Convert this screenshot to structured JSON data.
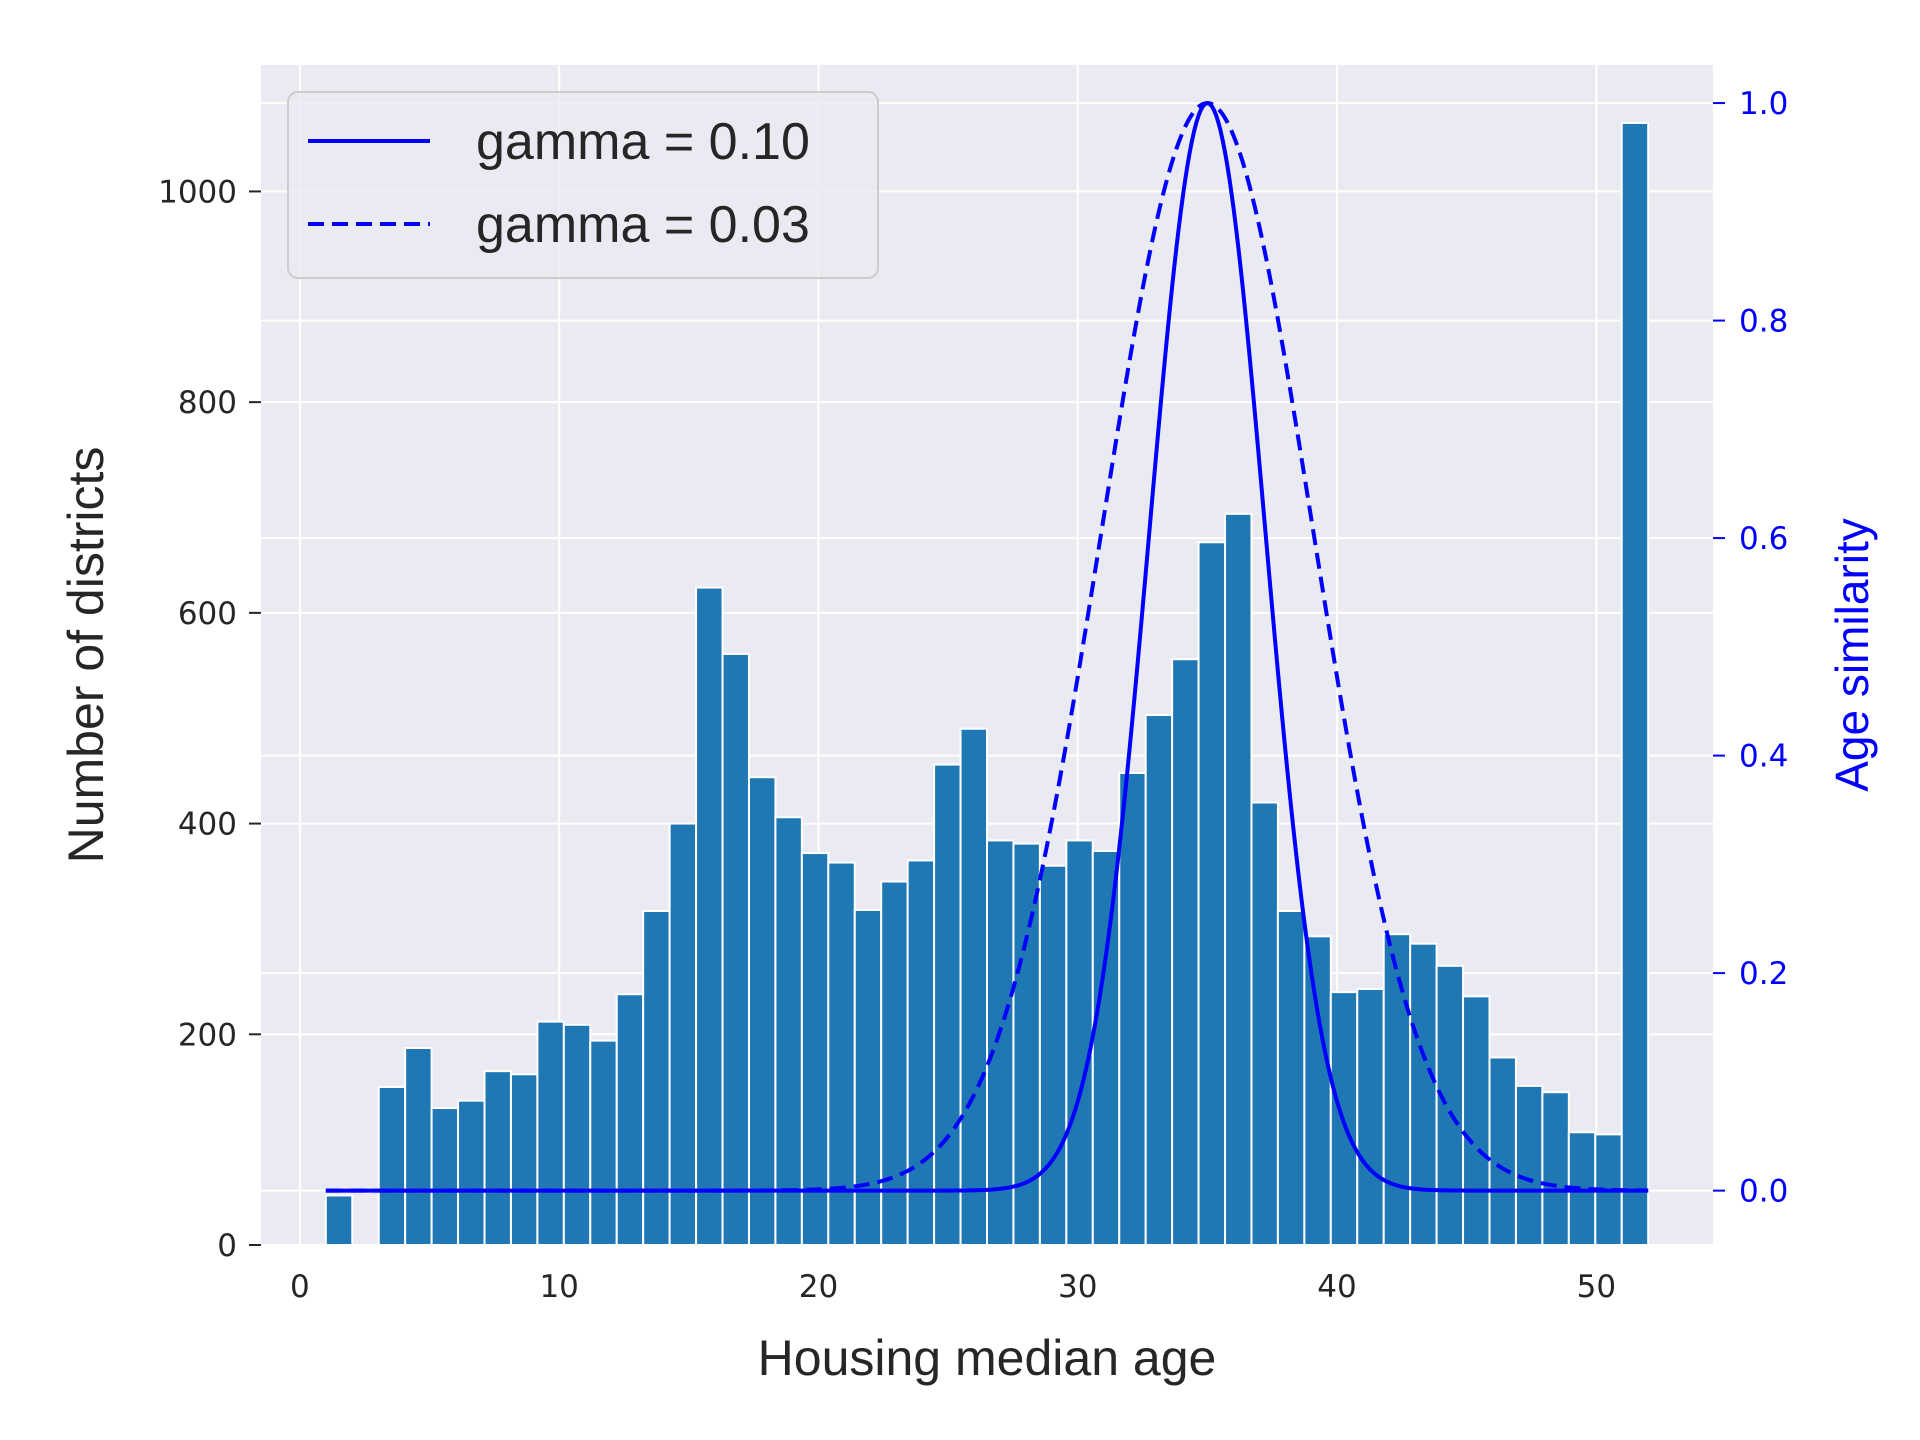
{
  "chart_data": {
    "type": "bar",
    "xlabel": "Housing median age",
    "ylabel": "Number of districts",
    "ylabel_right": "Age similarity",
    "xlim": [
      -1.5,
      54.5
    ],
    "ylim": [
      0,
      1120
    ],
    "ylim_right": [
      -0.05,
      1.035
    ],
    "x_ticks": [
      "0",
      "10",
      "20",
      "30",
      "40",
      "50"
    ],
    "y_ticks": [
      "0",
      "200",
      "400",
      "600",
      "800",
      "1000"
    ],
    "y_ticks_right": [
      "0.0",
      "0.2",
      "0.4",
      "0.6",
      "0.8",
      "1.0"
    ],
    "grid": true,
    "legend_position": "upper-left",
    "bins": {
      "start": 1,
      "end": 52,
      "count": 50
    },
    "values": [
      47,
      0,
      150,
      187,
      130,
      137,
      165,
      162,
      212,
      209,
      194,
      238,
      317,
      400,
      624,
      561,
      444,
      406,
      372,
      363,
      318,
      345,
      365,
      456,
      490,
      384,
      381,
      360,
      384,
      374,
      448,
      503,
      556,
      667,
      694,
      420,
      317,
      293,
      240,
      243,
      295,
      286,
      265,
      236,
      178,
      151,
      145,
      107,
      105,
      1065
    ],
    "bar_color": "#1f77b4",
    "curves": [
      {
        "name": "gamma = 0.10",
        "gamma": 0.1,
        "center": 35,
        "style": "solid",
        "color": "#0000ff"
      },
      {
        "name": "gamma = 0.03",
        "gamma": 0.03,
        "center": 35,
        "style": "dashed",
        "color": "#0000ff"
      }
    ],
    "colors": {
      "background": "#eaeaf2",
      "grid": "#ffffff",
      "right_axis": "#0000ff"
    }
  }
}
